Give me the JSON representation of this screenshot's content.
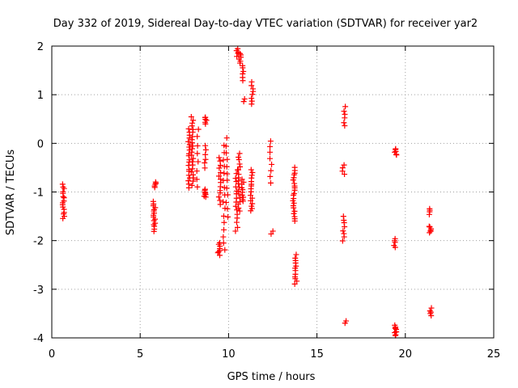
{
  "chart_data": {
    "type": "scatter",
    "title": "Day 332 of 2019, Sidereal Day-to-day VTEC variation (SDTVAR) for receiver yar2",
    "xlabel": "GPS time / hours",
    "ylabel": "SDTVAR / TECUs",
    "xlim": [
      0,
      25
    ],
    "ylim": [
      -4,
      2
    ],
    "xticks": [
      0,
      5,
      10,
      15,
      20,
      25
    ],
    "yticks": [
      -4,
      -3,
      -2,
      -1,
      0,
      1,
      2
    ],
    "grid": true,
    "marker": "+",
    "color": "#ff0000",
    "clusters": [
      {
        "x": 0.65,
        "y0": -1.55,
        "y1": -0.85,
        "n": 16
      },
      {
        "x": 5.8,
        "y0": -1.8,
        "y1": -1.2,
        "n": 16
      },
      {
        "x": 5.85,
        "y0": -0.9,
        "y1": -0.8,
        "n": 5
      },
      {
        "x": 7.75,
        "y0": -0.9,
        "y1": 0.3,
        "n": 20
      },
      {
        "x": 7.95,
        "y0": -0.85,
        "y1": 0.55,
        "n": 22
      },
      {
        "x": 8.25,
        "y0": -0.9,
        "y1": 0.3,
        "n": 8
      },
      {
        "x": 8.65,
        "y0": -1.1,
        "y1": -0.95,
        "n": 8
      },
      {
        "x": 8.7,
        "y0": -0.5,
        "y1": -0.05,
        "n": 6
      },
      {
        "x": 8.7,
        "y0": 0.4,
        "y1": 0.55,
        "n": 6
      },
      {
        "x": 9.45,
        "y0": -2.3,
        "y1": -2.05,
        "n": 8
      },
      {
        "x": 9.5,
        "y0": -1.25,
        "y1": -0.3,
        "n": 14
      },
      {
        "x": 9.75,
        "y0": -2.2,
        "y1": -0.05,
        "n": 16
      },
      {
        "x": 9.9,
        "y0": -1.5,
        "y1": 0.1,
        "n": 12
      },
      {
        "x": 10.45,
        "y0": -1.8,
        "y1": -0.55,
        "n": 16
      },
      {
        "x": 10.6,
        "y0": -1.4,
        "y1": -0.2,
        "n": 18
      },
      {
        "x": 10.8,
        "y0": -1.2,
        "y1": -0.75,
        "n": 10
      },
      {
        "x": 10.5,
        "y0": 1.8,
        "y1": 1.95,
        "n": 5
      },
      {
        "x": 10.65,
        "y0": 1.65,
        "y1": 1.85,
        "n": 6
      },
      {
        "x": 10.8,
        "y0": 1.3,
        "y1": 1.6,
        "n": 6
      },
      {
        "x": 10.85,
        "y0": 0.85,
        "y1": 0.9,
        "n": 2
      },
      {
        "x": 11.3,
        "y0": -1.4,
        "y1": -0.55,
        "n": 16
      },
      {
        "x": 11.35,
        "y0": 0.8,
        "y1": 1.25,
        "n": 8
      },
      {
        "x": 12.4,
        "y0": -0.8,
        "y1": 0.05,
        "n": 8
      },
      {
        "x": 12.45,
        "y0": -1.85,
        "y1": -1.8,
        "n": 2
      },
      {
        "x": 13.7,
        "y0": -1.6,
        "y1": -0.5,
        "n": 22
      },
      {
        "x": 13.8,
        "y0": -2.9,
        "y1": -2.3,
        "n": 12
      },
      {
        "x": 16.5,
        "y0": -2.0,
        "y1": -1.5,
        "n": 8
      },
      {
        "x": 16.5,
        "y0": -0.65,
        "y1": -0.45,
        "n": 4
      },
      {
        "x": 16.55,
        "y0": 0.35,
        "y1": 0.75,
        "n": 6
      },
      {
        "x": 16.6,
        "y0": -3.7,
        "y1": -3.65,
        "n": 2
      },
      {
        "x": 19.4,
        "y0": -2.15,
        "y1": -1.95,
        "n": 5
      },
      {
        "x": 19.45,
        "y0": -0.25,
        "y1": -0.1,
        "n": 6
      },
      {
        "x": 19.45,
        "y0": -3.95,
        "y1": -3.75,
        "n": 10
      },
      {
        "x": 21.4,
        "y0": -1.85,
        "y1": -1.7,
        "n": 6
      },
      {
        "x": 21.4,
        "y0": -1.45,
        "y1": -1.35,
        "n": 4
      },
      {
        "x": 21.45,
        "y0": -3.55,
        "y1": -3.4,
        "n": 5
      }
    ]
  }
}
